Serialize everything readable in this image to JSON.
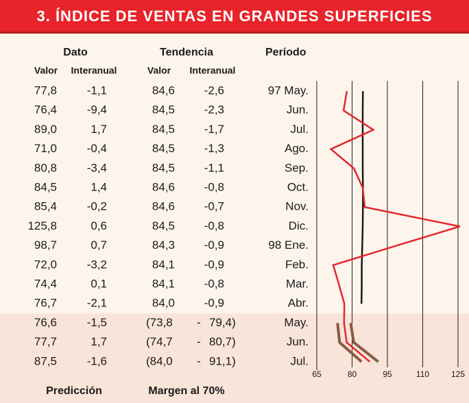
{
  "chart_data": {
    "type": "line",
    "title": "3. ÍNDICE DE VENTAS EN GRANDES SUPERFICIES",
    "headers": [
      "Dato",
      "Tendencia",
      "Período"
    ],
    "subheaders": [
      "Valor",
      "Interanual",
      "Valor",
      "Interanual"
    ],
    "categories": [
      "97 May.",
      "Jun.",
      "Jul.",
      "Ago.",
      "Sep.",
      "Oct.",
      "Nov.",
      "Dic.",
      "98 Ene.",
      "Feb.",
      "Mar.",
      "Abr.",
      "May.",
      "Jun.",
      "Jul."
    ],
    "series": [
      {
        "name": "Dato",
        "color": "#e3262b",
        "values": [
          77.8,
          76.4,
          89.0,
          71.0,
          80.8,
          84.5,
          85.4,
          125.8,
          98.7,
          72.0,
          74.4,
          76.7,
          76.6,
          77.7,
          87.5
        ],
        "value_labels": [
          "77,8",
          "76,4",
          "89,0",
          "71,0",
          "80,8",
          "84,5",
          "85,4",
          "125,8",
          "98,7",
          "72,0",
          "74,4",
          "76,7",
          "76,6",
          "77,7",
          "87,5"
        ],
        "interanual": [
          "-1,1",
          "-9,4",
          "1,7",
          "-0,4",
          "-3,4",
          "1,4",
          "-0,2",
          "0,6",
          "0,7",
          "-3,2",
          "0,1",
          "-2,1",
          "-1,5",
          "1,7",
          "-1,6"
        ]
      },
      {
        "name": "Tendencia",
        "color": "#1a1a1a",
        "values": [
          84.6,
          84.5,
          84.5,
          84.5,
          84.5,
          84.6,
          84.6,
          84.5,
          84.3,
          84.1,
          84.1,
          84.0,
          null,
          null,
          null
        ],
        "value_labels": [
          "84,6",
          "84,5",
          "84,5",
          "84,5",
          "84,5",
          "84,6",
          "84,6",
          "84,5",
          "84,3",
          "84,1",
          "84,1",
          "84,0",
          null,
          null,
          null
        ],
        "interanual": [
          "-2,6",
          "-2,3",
          "-1,7",
          "-1,3",
          "-1,1",
          "-0,8",
          "-0,7",
          "-0,8",
          "-0,9",
          "-0,9",
          "-0,8",
          "-0,9",
          null,
          null,
          null
        ]
      },
      {
        "name": "Margen al 70%",
        "color": "#8a5a44",
        "lower": [
          null,
          null,
          null,
          null,
          null,
          null,
          null,
          null,
          null,
          null,
          null,
          null,
          73.8,
          74.7,
          84.0
        ],
        "upper": [
          null,
          null,
          null,
          null,
          null,
          null,
          null,
          null,
          null,
          null,
          null,
          null,
          79.4,
          80.7,
          91.1
        ],
        "lower_labels": [
          null,
          null,
          null,
          null,
          null,
          null,
          null,
          null,
          null,
          null,
          null,
          null,
          "(73,8",
          "(74,7",
          "(84,0"
        ],
        "upper_labels": [
          null,
          null,
          null,
          null,
          null,
          null,
          null,
          null,
          null,
          null,
          null,
          null,
          "79,4)",
          "80,7)",
          "91,1)"
        ]
      }
    ],
    "range_separator": "-",
    "prediction_label": "Predicción",
    "xlim": [
      65,
      125
    ],
    "xticks": [
      65,
      80,
      95,
      110,
      125
    ],
    "grid": true
  }
}
